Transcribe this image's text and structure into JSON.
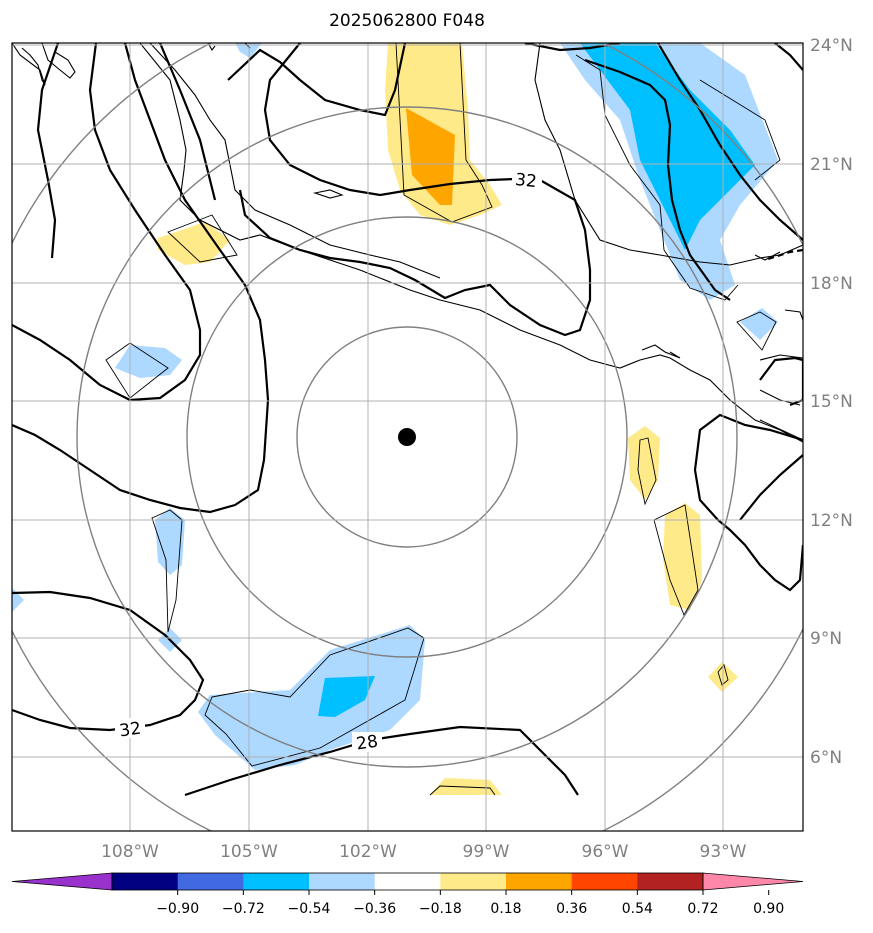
{
  "title": "2025062800 F048",
  "map": {
    "lon_range": [
      -111,
      -91
    ],
    "lat_range": [
      4,
      24
    ],
    "lon_ticks": [
      "108°W",
      "105°W",
      "102°W",
      "99°W",
      "96°W",
      "93°W"
    ],
    "lat_ticks": [
      "24°N",
      "21°N",
      "18°N",
      "15°N",
      "12°N",
      "9°N",
      "6°N"
    ],
    "storm_center": {
      "lon": -101,
      "lat": 14
    },
    "range_rings": "concentric rings around storm center",
    "grid": true,
    "colors": {
      "purple": "#9932cc",
      "navy": "#000080",
      "royal": "#4169e1",
      "deepsky": "#00bfff",
      "lightblue": "#add8ff",
      "white": "#ffffff",
      "khaki": "#ffea8a",
      "orange": "#ffa500",
      "orangered": "#ff4500",
      "firebrick": "#b22222",
      "pink": "#ff88aa"
    },
    "contour_labels": [
      "32",
      "32",
      "28"
    ]
  },
  "colorbar": {
    "ticks": [
      "−0.90",
      "−0.72",
      "−0.54",
      "−0.36",
      "−0.18",
      "0.18",
      "0.36",
      "0.54",
      "0.72",
      "0.90"
    ],
    "bins": [
      "#9932cc",
      "#000080",
      "#4169e1",
      "#00bfff",
      "#add8ff",
      "#ffffff",
      "#ffea8a",
      "#ffa500",
      "#ff4500",
      "#b22222",
      "#ff88aa"
    ],
    "extend": "both"
  }
}
